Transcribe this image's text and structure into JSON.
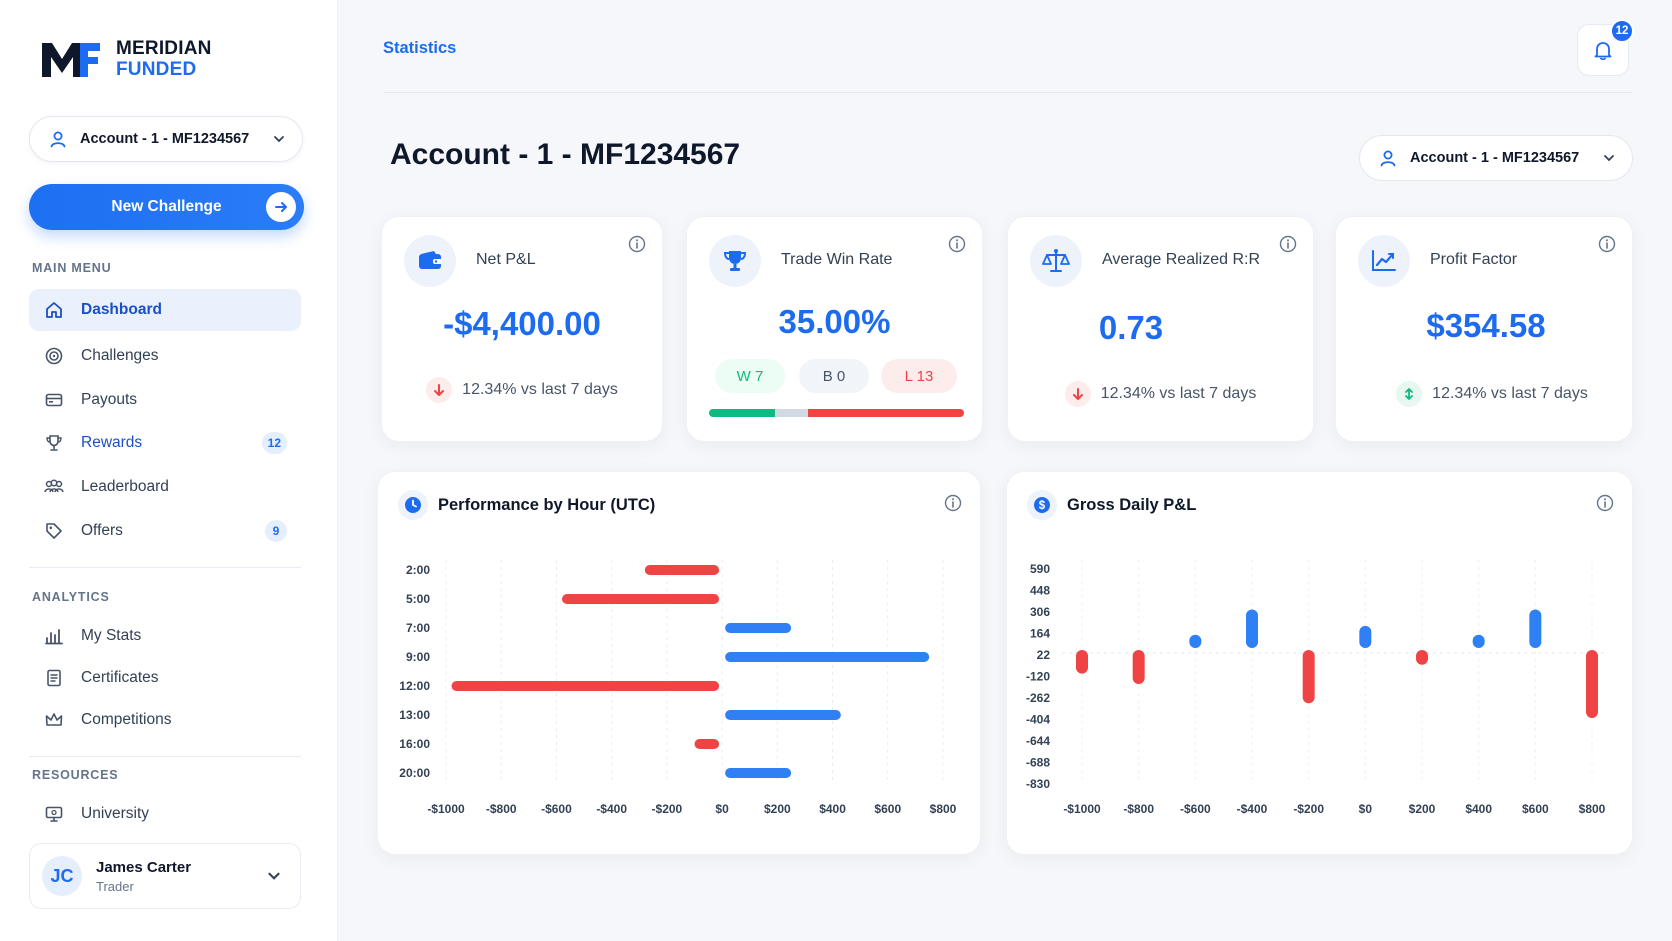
{
  "brand": {
    "line1": "MERIDIAN",
    "line2": "FUNDED"
  },
  "account_selector": {
    "label": "Account - 1 - MF1234567"
  },
  "new_challenge": {
    "label": "New Challenge"
  },
  "sidebar": {
    "main_menu_label": "MAIN MENU",
    "main_items": [
      {
        "label": "Dashboard",
        "icon": "home-icon"
      },
      {
        "label": "Challenges",
        "icon": "target-icon"
      },
      {
        "label": "Payouts",
        "icon": "wallet-icon"
      },
      {
        "label": "Rewards",
        "icon": "trophy-icon",
        "badge": "12"
      },
      {
        "label": "Leaderboard",
        "icon": "users-icon"
      },
      {
        "label": "Offers",
        "icon": "tag-icon",
        "badge": "9"
      }
    ],
    "analytics_label": "ANALYTICS",
    "analytics_items": [
      {
        "label": "My Stats",
        "icon": "bar-chart-icon"
      },
      {
        "label": "Certificates",
        "icon": "document-icon"
      },
      {
        "label": "Competitions",
        "icon": "crown-icon"
      }
    ],
    "resources_label": "RESOURCES",
    "resources_items": [
      {
        "label": "University",
        "icon": "monitor-icon"
      }
    ]
  },
  "user": {
    "initials": "JC",
    "name": "James Carter",
    "role": "Trader"
  },
  "header": {
    "breadcrumb": "Statistics",
    "notification_count": "12"
  },
  "page": {
    "title": "Account - 1 - MF1234567"
  },
  "kpis": {
    "net_pnl": {
      "title": "Net P&L",
      "value": "-$4,400.00",
      "delta": "12.34% vs last 7 days"
    },
    "win_rate": {
      "title": "Trade Win Rate",
      "value": "35.00%",
      "wins": "W 7",
      "breakeven": "B 0",
      "losses": "L 13",
      "win_fraction": 0.35
    },
    "avg_rr": {
      "title": "Average Realized R:R",
      "value": "0.73",
      "delta": "12.34% vs last 7 days"
    },
    "profit_factor": {
      "title": "Profit Factor",
      "value": "$354.58",
      "delta": "12.34% vs last 7 days"
    }
  },
  "colors": {
    "accent": "#1d6cf0",
    "positive": "#2f7ff5",
    "negative": "#f04444",
    "win": "#10b981",
    "loss": "#ef4444"
  },
  "chart_data": [
    {
      "type": "bar",
      "orientation": "horizontal",
      "title": "Performance by Hour (UTC)",
      "categories": [
        "2:00",
        "5:00",
        "7:00",
        "9:00",
        "12:00",
        "13:00",
        "16:00",
        "20:00"
      ],
      "values": [
        -280,
        -580,
        250,
        750,
        -980,
        430,
        -100,
        250
      ],
      "xlim": [
        -1000,
        800
      ],
      "xticks": [
        "-$1000",
        "-$800",
        "-$600",
        "-$400",
        "-$200",
        "$0",
        "$200",
        "$400",
        "$600",
        "$800"
      ],
      "grid": true
    },
    {
      "type": "bar",
      "title": "Gross Daily P&L",
      "x": [
        -1000,
        -800,
        -600,
        -400,
        -200,
        0,
        200,
        400,
        600,
        800
      ],
      "values": [
        -160,
        -230,
        90,
        260,
        -360,
        150,
        -100,
        90,
        260,
        -460
      ],
      "yticks": [
        "590",
        "448",
        "306",
        "164",
        "22",
        "-120",
        "-262",
        "-404",
        "-644",
        "-688",
        "-830"
      ],
      "xticks": [
        "-$1000",
        "-$800",
        "-$600",
        "-$400",
        "-$200",
        "$0",
        "$200",
        "$400",
        "$600",
        "$800"
      ],
      "grid": true
    }
  ]
}
